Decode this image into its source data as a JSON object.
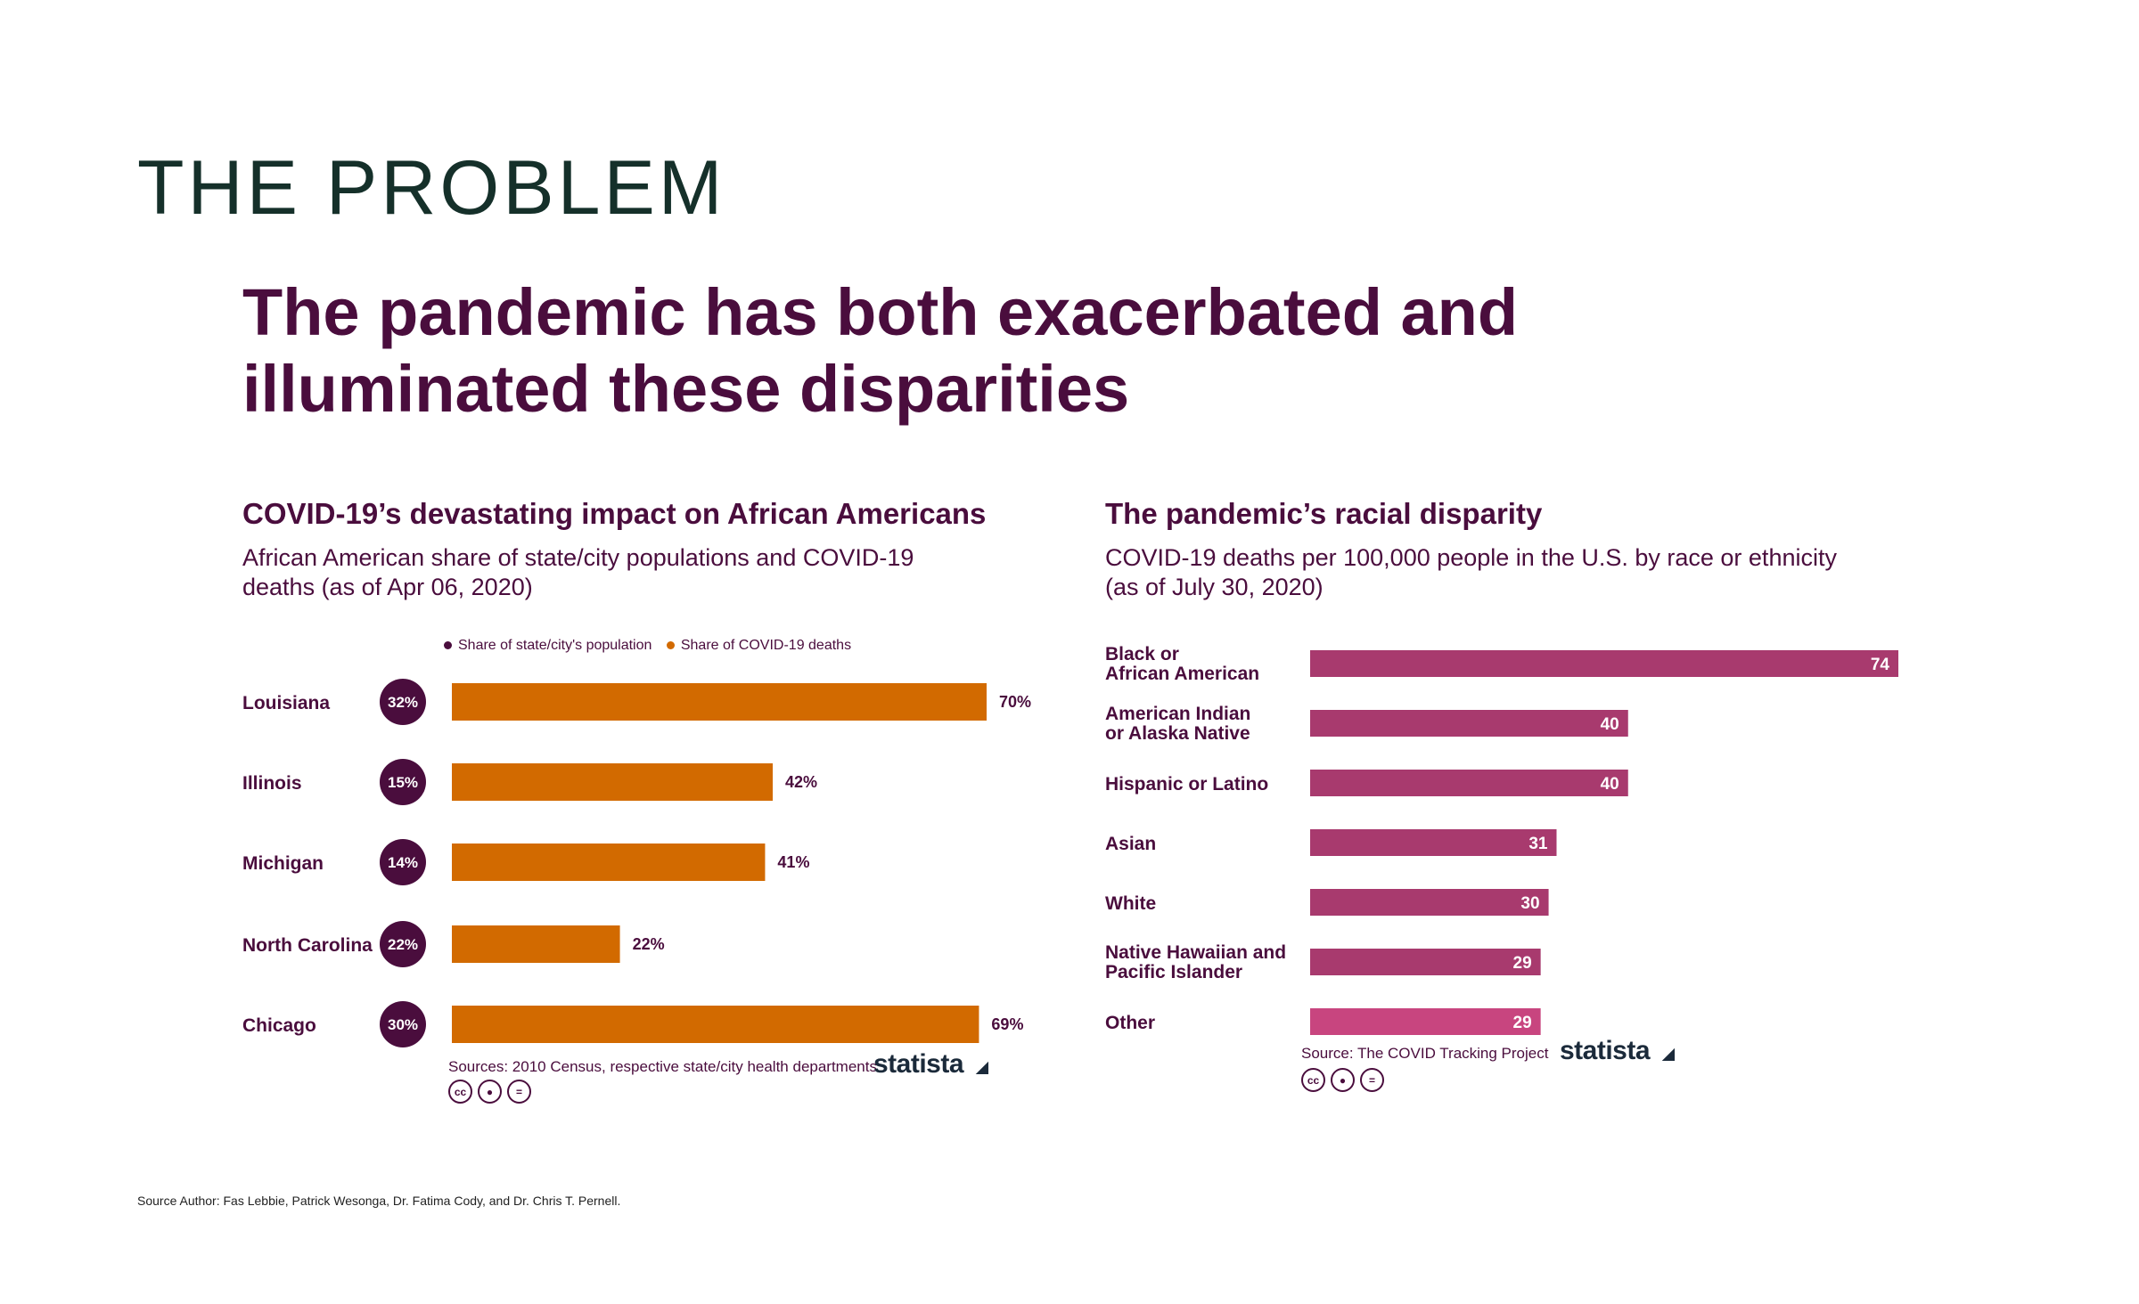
{
  "page": {
    "section_title": "THE PROBLEM",
    "headline_line1": "The pandemic has both exacerbated and",
    "headline_line2": "illuminated these disparities",
    "footer": "Source Author: Fas Lebbie, Patrick Wesonga, Dr. Fatima Cody, and Dr. Chris T. Pernell."
  },
  "left_chart": {
    "subtitle_line1": "African American share of state/city populations and COVID-19",
    "subtitle_line2": "deaths (as of Apr 06, 2020)",
    "source": "Sources: 2010 Census, respective state/city health departments",
    "brand": "statista"
  },
  "right_chart": {
    "subtitle_line1": "COVID-19 deaths per 100,000 people in the U.S. by race or ethnicity",
    "subtitle_line2": "(as of July 30, 2020)",
    "source": "Source: The COVID Tracking Project",
    "brand": "statista"
  },
  "cc_icons": [
    "cc",
    "by",
    "nd"
  ],
  "chart_data": [
    {
      "type": "bar",
      "title": "COVID-19’s devastating impact on African Americans",
      "categories": [
        "Louisiana",
        "Illinois",
        "Michigan",
        "North Carolina",
        "Chicago"
      ],
      "series": [
        {
          "name": "Share of state/city's population",
          "values": [
            32,
            15,
            14,
            22,
            30
          ],
          "color": "#4a0d3d"
        },
        {
          "name": "Share of COVID-19 deaths",
          "values": [
            70,
            42,
            41,
            22,
            69
          ],
          "color": "#d26a00"
        }
      ],
      "unit": "%",
      "xlim": [
        0,
        70
      ],
      "legend": "top",
      "grid": false
    },
    {
      "type": "bar",
      "title": "The pandemic’s racial disparity",
      "categories": [
        [
          "Black or",
          "African American"
        ],
        [
          "American Indian",
          "or Alaska Native"
        ],
        [
          "Hispanic or Latino"
        ],
        [
          "Asian"
        ],
        [
          "White"
        ],
        [
          "Native Hawaiian and",
          "Pacific Islander"
        ],
        [
          "Other"
        ]
      ],
      "values": [
        74,
        40,
        40,
        31,
        30,
        29,
        29
      ],
      "colors": [
        "#a83a6e",
        "#a83a6e",
        "#a83a6e",
        "#a83a6e",
        "#a83a6e",
        "#a83a6e",
        "#c8457f"
      ],
      "xlim": [
        0,
        74
      ],
      "grid": false
    }
  ]
}
